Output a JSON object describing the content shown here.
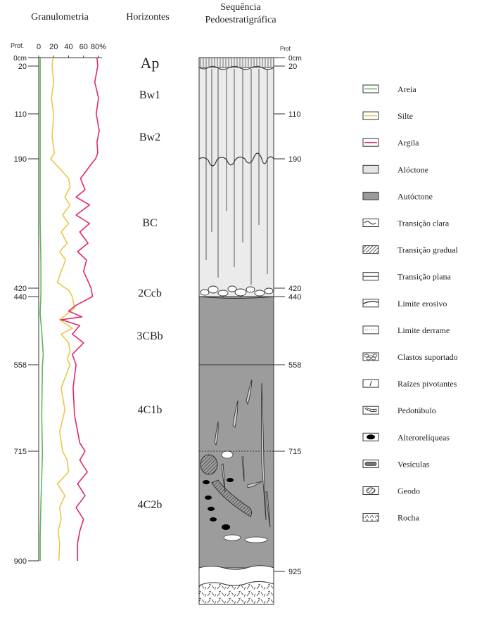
{
  "headers": {
    "granulometria": "Granulometria",
    "horizontes": "Horizontes",
    "sequencia_1": "Sequência",
    "sequencia_2": "Pedoestratigráfica"
  },
  "depth_label": "Prof.",
  "granulometry_ticks": [
    "0",
    "20",
    "40",
    "60",
    "80%"
  ],
  "left_depths": [
    "0cm",
    "20",
    "110",
    "190",
    "420",
    "440",
    "558",
    "715",
    "900"
  ],
  "right_depths": [
    "0cm",
    "20",
    "110",
    "190",
    "420",
    "440",
    "558",
    "715",
    "925"
  ],
  "horizons": [
    "Ap",
    "Bw1",
    "Bw2",
    "BC",
    "2Ccb",
    "3CBb",
    "4C1b",
    "4C2b"
  ],
  "legend": [
    {
      "label": "Areia",
      "icon": "sand-swatch-icon"
    },
    {
      "label": "Silte",
      "icon": "silt-swatch-icon"
    },
    {
      "label": "Argila",
      "icon": "clay-swatch-icon"
    },
    {
      "label": "Alóctone",
      "icon": "allochthonous-swatch-icon"
    },
    {
      "label": "Autóctone",
      "icon": "autochthonous-swatch-icon"
    },
    {
      "label": "Transição clara",
      "icon": "clear-transition-icon"
    },
    {
      "label": "Transição gradual",
      "icon": "gradual-transition-icon"
    },
    {
      "label": "Transição plana",
      "icon": "flat-transition-icon"
    },
    {
      "label": "Limite erosivo",
      "icon": "erosive-boundary-icon"
    },
    {
      "label": "Limite derrame",
      "icon": "flow-boundary-icon"
    },
    {
      "label": "Clastos suportado",
      "icon": "supported-clasts-icon"
    },
    {
      "label": "Raízes pivotantes",
      "icon": "taproots-icon"
    },
    {
      "label": "Pedotúbulo",
      "icon": "pedotubule-icon"
    },
    {
      "label": "Alterorelíqueas",
      "icon": "alterorelic-icon"
    },
    {
      "label": "Vesículas",
      "icon": "vesicles-icon"
    },
    {
      "label": "Geodo",
      "icon": "geode-icon"
    },
    {
      "label": "Rocha",
      "icon": "rock-icon"
    }
  ],
  "colors": {
    "sand": "#5cb85c",
    "silt": "#e8c84a",
    "clay": "#e0286e",
    "allochthonous": "#e4e4e4",
    "autochthonous": "#9a9a9a"
  },
  "chart_data": {
    "type": "line",
    "xlim": [
      0,
      80
    ],
    "ylim": [
      0,
      900
    ],
    "y_reversed": true,
    "series": [
      {
        "name": "Areia",
        "color": "#5cb85c",
        "x": [
          2,
          2,
          2,
          2,
          3,
          3,
          2,
          4,
          6,
          5,
          4,
          5,
          3,
          2,
          2
        ],
        "y": [
          0,
          100,
          200,
          300,
          380,
          430,
          470,
          500,
          540,
          560,
          650,
          720,
          800,
          860,
          900
        ]
      },
      {
        "name": "Silte",
        "color": "#e8c84a",
        "x": [
          19,
          18,
          20,
          17,
          20,
          18,
          21,
          16,
          30,
          40,
          42,
          35,
          42,
          32,
          40,
          30,
          38,
          28,
          36,
          30,
          25,
          40,
          45,
          48,
          38,
          28,
          45,
          30,
          40,
          42,
          38,
          42,
          30,
          35,
          28,
          32,
          38,
          40,
          25,
          35,
          28,
          30,
          26,
          28,
          27
        ],
        "y": [
          0,
          20,
          50,
          80,
          110,
          150,
          180,
          190,
          210,
          225,
          240,
          258,
          272,
          290,
          305,
          320,
          340,
          355,
          370,
          390,
          410,
          425,
          440,
          460,
          470,
          480,
          495,
          505,
          520,
          535,
          548,
          558,
          600,
          640,
          680,
          715,
          730,
          750,
          770,
          790,
          810,
          830,
          850,
          870,
          900
        ]
      },
      {
        "name": "Argila",
        "color": "#e0286e",
        "x": [
          78,
          79,
          75,
          80,
          77,
          81,
          78,
          79,
          76,
          70,
          56,
          62,
          50,
          68,
          50,
          68,
          55,
          66,
          52,
          64,
          60,
          70,
          72,
          50,
          40,
          58,
          30,
          55,
          45,
          60,
          45,
          50,
          46,
          48,
          55,
          62,
          55,
          65,
          52,
          62,
          50,
          60,
          55,
          52,
          52
        ],
        "y": [
          0,
          20,
          50,
          80,
          110,
          140,
          160,
          180,
          190,
          200,
          225,
          245,
          258,
          272,
          290,
          305,
          320,
          340,
          355,
          370,
          390,
          420,
          440,
          455,
          465,
          475,
          480,
          490,
          505,
          520,
          540,
          558,
          600,
          650,
          700,
          715,
          730,
          750,
          770,
          790,
          810,
          830,
          850,
          870,
          900
        ]
      }
    ]
  }
}
